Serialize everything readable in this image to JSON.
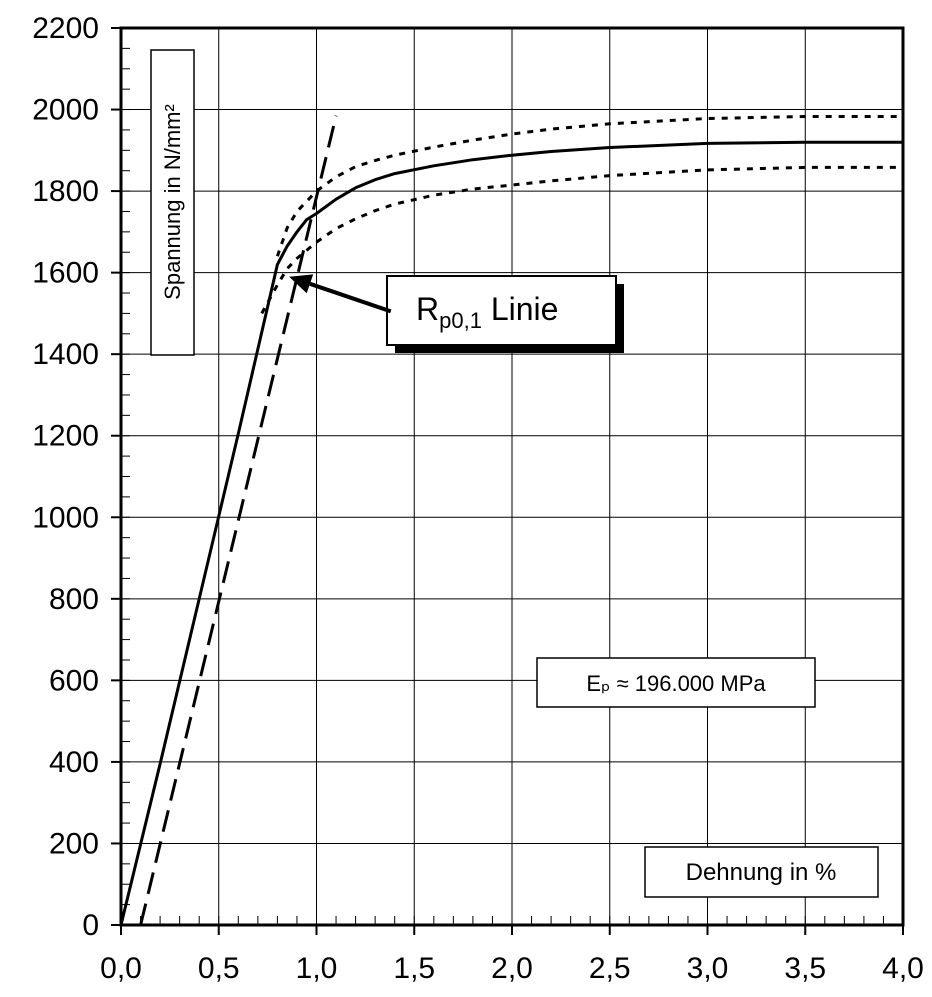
{
  "chart_data": {
    "type": "line",
    "xlim": [
      0,
      4
    ],
    "ylim": [
      0,
      2200
    ],
    "x_ticks": [
      "0,0",
      "0,5",
      "1,0",
      "1,5",
      "2,0",
      "2,5",
      "3,0",
      "3,5",
      "4,0"
    ],
    "y_ticks": [
      "0",
      "200",
      "400",
      "600",
      "800",
      "1000",
      "1200",
      "1400",
      "1600",
      "1800",
      "2000",
      "2200"
    ],
    "x_minor_step": 0.1,
    "y_minor_step": 50,
    "grid": true,
    "ylabel": "Spannung in N/mm²",
    "xlabel": "Dehnung in %",
    "modulus_label": "Eₚ ≈ 196.000 MPa",
    "rp_label": {
      "main": "R",
      "sub": "p0,1",
      "suffix": " Linie"
    },
    "series": [
      {
        "style": "solid",
        "x": [
          0,
          0.2,
          0.4,
          0.6,
          0.8,
          0.85,
          0.9,
          0.95,
          1.0,
          1.1,
          1.2,
          1.3,
          1.4,
          1.6,
          1.8,
          2.0,
          2.2,
          2.5,
          3.0,
          3.5,
          4.0
        ],
        "y": [
          0,
          395,
          800,
          1205,
          1620,
          1665,
          1700,
          1730,
          1745,
          1780,
          1808,
          1828,
          1843,
          1862,
          1877,
          1888,
          1897,
          1907,
          1917,
          1920,
          1920
        ]
      },
      {
        "style": "dotted",
        "x": [
          0.8,
          0.85,
          0.9,
          0.95,
          1.0,
          1.1,
          1.2,
          1.3,
          1.4,
          1.6,
          1.8,
          2.0,
          2.2,
          2.5,
          3.0,
          3.5,
          4.0
        ],
        "y": [
          1640,
          1710,
          1750,
          1775,
          1800,
          1835,
          1860,
          1875,
          1888,
          1908,
          1925,
          1940,
          1952,
          1965,
          1978,
          1983,
          1983
        ]
      },
      {
        "style": "dotted",
        "x": [
          0.72,
          0.8,
          0.85,
          0.9,
          1.0,
          1.1,
          1.2,
          1.3,
          1.4,
          1.6,
          1.8,
          2.0,
          2.2,
          2.5,
          3.0,
          3.5,
          4.0
        ],
        "y": [
          1500,
          1570,
          1610,
          1635,
          1675,
          1708,
          1732,
          1752,
          1768,
          1790,
          1805,
          1815,
          1825,
          1838,
          1852,
          1858,
          1858
        ]
      },
      {
        "style": "dashed",
        "x": [
          0.1,
          1.1
        ],
        "y": [
          0,
          1985
        ]
      }
    ],
    "annotation_arrow": {
      "from": [
        1.38,
        1505
      ],
      "to": [
        0.86,
        1590
      ]
    }
  }
}
